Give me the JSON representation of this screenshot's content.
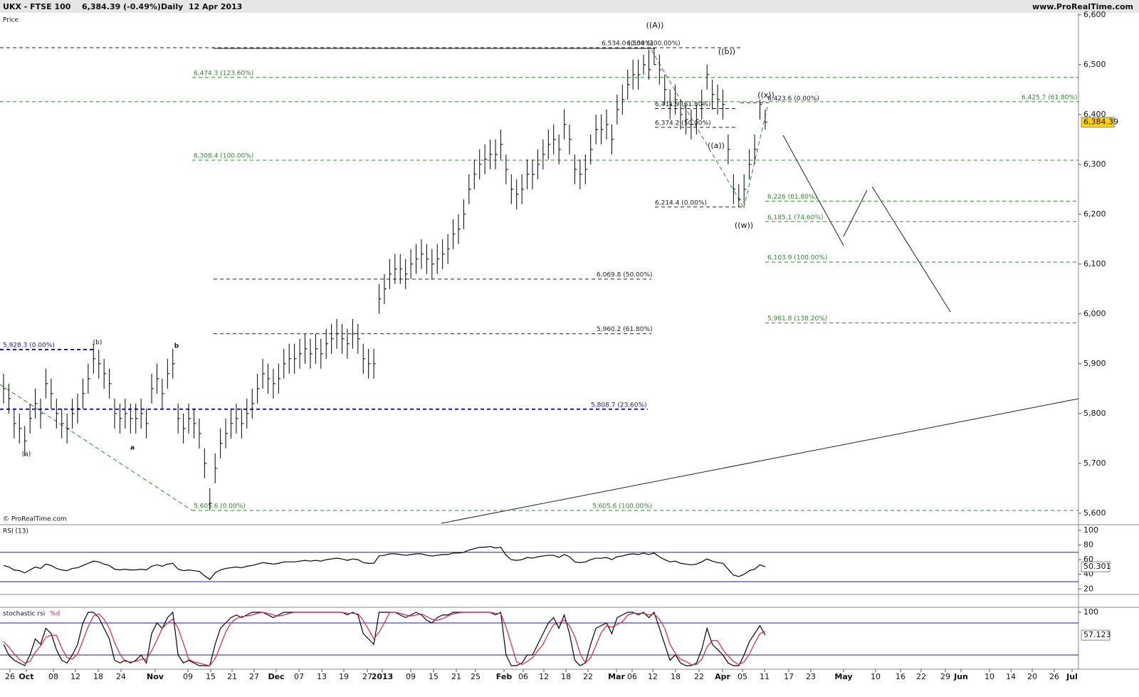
{
  "header": {
    "symbol": "UKX - FTSE 100",
    "quote": "6,384.39 (-0.49%)",
    "period": "Daily  12 Apr 2013",
    "source": "www.ProRealTime.com"
  },
  "chart_data": [
    {
      "type": "ohlc",
      "title": "Price",
      "watermark": "© ProRealTime.com",
      "last_label": "6,384.39",
      "color": "#000000",
      "ylim": [
        5577,
        6604
      ],
      "yticks": [
        {
          "value": 6600,
          "label": "6,600"
        },
        {
          "value": 6500,
          "label": "6,500"
        },
        {
          "value": 6400,
          "label": "6,400"
        },
        {
          "value": 6300,
          "label": "6,300"
        },
        {
          "value": 6200,
          "label": "6,200"
        },
        {
          "value": 6100,
          "label": "6,100"
        },
        {
          "value": 6000,
          "label": "6,000"
        },
        {
          "value": 5900,
          "label": "5,900"
        },
        {
          "value": 5800,
          "label": "5,800"
        },
        {
          "value": 5700,
          "label": "5,700"
        },
        {
          "value": 5600,
          "label": "5,600"
        }
      ],
      "date_labels": [
        "26",
        "Oct",
        "08",
        "12",
        "18",
        "24",
        "Nov",
        "09",
        "15",
        "21",
        "27",
        "Dec",
        "07",
        "13",
        "19",
        "27",
        "2013",
        "09",
        "15",
        "21",
        "25",
        "Feb",
        "06",
        "12",
        "18",
        "22",
        "Mar",
        "06",
        "12",
        "18",
        "22",
        "Apr",
        "05",
        "11",
        "17",
        "23",
        "May",
        "10",
        "16",
        "22",
        "29",
        "Jun",
        "10",
        "14",
        "20",
        "26",
        "Jul"
      ],
      "high": [
        5880,
        5860,
        5810,
        5800,
        5775,
        5820,
        5850,
        5830,
        5890,
        5870,
        5830,
        5810,
        5800,
        5830,
        5840,
        5870,
        5900,
        5940,
        5928.3,
        5910,
        5890,
        5830,
        5820,
        5830,
        5820,
        5820,
        5830,
        5810,
        5880,
        5900,
        5870,
        5910,
        5930,
        5820,
        5800,
        5820,
        5810,
        5790,
        5730,
        5650,
        5720,
        5770,
        5790,
        5810,
        5820,
        5810,
        5830,
        5850,
        5880,
        5910,
        5900,
        5890,
        5900,
        5930,
        5940,
        5940,
        5950,
        5960,
        5950,
        5960,
        5950,
        5970,
        5980,
        5990,
        5980,
        5970,
        5990,
        5980,
        5940,
        5930,
        5930,
        6060,
        6080,
        6110,
        6120,
        6120,
        6110,
        6130,
        6140,
        6150,
        6140,
        6130,
        6140,
        6150,
        6160,
        6190,
        6200,
        6230,
        6280,
        6310,
        6330,
        6340,
        6350,
        6350,
        6370,
        6320,
        6280,
        6270,
        6280,
        6310,
        6310,
        6330,
        6350,
        6370,
        6380,
        6360,
        6410,
        6380,
        6320,
        6310,
        6320,
        6360,
        6400,
        6400,
        6410,
        6380,
        6440,
        6460,
        6490,
        6510,
        6510,
        6520,
        6530,
        6534,
        6520,
        6480,
        6450,
        6460,
        6430,
        6420,
        6410,
        6420,
        6450,
        6500,
        6470,
        6460,
        6450,
        6360,
        6280,
        6260,
        6280,
        6330,
        6360,
        6430,
        6410
      ],
      "low": [
        5820,
        5800,
        5750,
        5740,
        5715,
        5760,
        5790,
        5770,
        5830,
        5810,
        5770,
        5750,
        5740,
        5770,
        5780,
        5810,
        5840,
        5880,
        5870,
        5850,
        5830,
        5770,
        5760,
        5770,
        5760,
        5760,
        5770,
        5750,
        5820,
        5840,
        5810,
        5850,
        5870,
        5760,
        5740,
        5760,
        5750,
        5730,
        5670,
        5605.6,
        5660,
        5710,
        5730,
        5750,
        5760,
        5750,
        5770,
        5790,
        5820,
        5850,
        5840,
        5830,
        5840,
        5870,
        5880,
        5880,
        5890,
        5900,
        5890,
        5900,
        5890,
        5910,
        5920,
        5930,
        5920,
        5910,
        5930,
        5920,
        5880,
        5870,
        5870,
        6000,
        6020,
        6050,
        6060,
        6060,
        6050,
        6070,
        6080,
        6090,
        6080,
        6070,
        6080,
        6090,
        6100,
        6130,
        6140,
        6170,
        6220,
        6250,
        6270,
        6280,
        6290,
        6290,
        6310,
        6260,
        6220,
        6210,
        6220,
        6250,
        6250,
        6270,
        6290,
        6310,
        6320,
        6300,
        6350,
        6320,
        6260,
        6250,
        6260,
        6300,
        6340,
        6340,
        6350,
        6320,
        6380,
        6400,
        6430,
        6450,
        6450,
        6480,
        6470,
        6500,
        6460,
        6420,
        6390,
        6400,
        6370,
        6360,
        6350,
        6360,
        6390,
        6450,
        6410,
        6400,
        6390,
        6300,
        6220,
        6214.4,
        6220,
        6270,
        6300,
        6390,
        6370
      ],
      "close": [
        5850,
        5830,
        5780,
        5770,
        5745,
        5790,
        5820,
        5800,
        5860,
        5840,
        5800,
        5780,
        5770,
        5800,
        5810,
        5840,
        5870,
        5910,
        5900,
        5880,
        5860,
        5800,
        5790,
        5800,
        5790,
        5790,
        5800,
        5780,
        5850,
        5870,
        5840,
        5880,
        5900,
        5790,
        5770,
        5790,
        5780,
        5760,
        5700,
        5620,
        5690,
        5740,
        5760,
        5780,
        5790,
        5780,
        5800,
        5820,
        5850,
        5880,
        5870,
        5860,
        5870,
        5900,
        5910,
        5910,
        5920,
        5930,
        5920,
        5930,
        5920,
        5940,
        5950,
        5960,
        5950,
        5940,
        5960,
        5950,
        5910,
        5900,
        5900,
        6030,
        6050,
        6080,
        6090,
        6090,
        6080,
        6100,
        6110,
        6120,
        6110,
        6100,
        6110,
        6120,
        6130,
        6160,
        6170,
        6200,
        6250,
        6280,
        6300,
        6310,
        6320,
        6320,
        6340,
        6290,
        6250,
        6240,
        6250,
        6280,
        6280,
        6300,
        6320,
        6340,
        6350,
        6330,
        6380,
        6350,
        6290,
        6280,
        6290,
        6330,
        6370,
        6370,
        6380,
        6350,
        6410,
        6430,
        6460,
        6480,
        6480,
        6500,
        6490,
        6500,
        6490,
        6450,
        6420,
        6430,
        6400,
        6390,
        6380,
        6390,
        6420,
        6480,
        6440,
        6430,
        6420,
        6330,
        6250,
        6230,
        6250,
        6300,
        6330,
        6420,
        6384.39
      ],
      "levels": [
        {
          "value": 6534.0,
          "label": "6,534.0 (0.00%)",
          "color": "#222222"
        },
        {
          "value": 6534,
          "label": "6,534 (100.00%)",
          "color": "#222222"
        },
        {
          "value": 6474.3,
          "label": "6,474.3 (123.60%)",
          "color": "#2e8b2e"
        },
        {
          "value": 6425.7,
          "label": "6,425.7 (61.80%)",
          "color": "#2e8b2e"
        },
        {
          "value": 6423.6,
          "label": "6,423.6 (0.00%)",
          "color": "#222222"
        },
        {
          "value": 6411.9,
          "label": "6,411.9 (61.80%)",
          "color": "#222222"
        },
        {
          "value": 6374.2,
          "label": "6,374.2 (50.00%)",
          "color": "#222222"
        },
        {
          "value": 6308.4,
          "label": "6,308.4 (100.00%)",
          "color": "#2e8b2e"
        },
        {
          "value": 6226,
          "label": "6,226 (61.80%)",
          "color": "#2e8b2e"
        },
        {
          "value": 6214.4,
          "label": "6,214.4 (0.00%)",
          "color": "#222222"
        },
        {
          "value": 6185.1,
          "label": "6,185.1 (74.60%)",
          "color": "#2e8b2e"
        },
        {
          "value": 6103.9,
          "label": "6,103.9 (100.00%)",
          "color": "#2e8b2e"
        },
        {
          "value": 6069.8,
          "label": "6,069.8 (50.00%)",
          "color": "#222222"
        },
        {
          "value": 5981.8,
          "label": "5,981.8 (138.20%)",
          "color": "#2e8b2e"
        },
        {
          "value": 5960.2,
          "label": "5,960.2 (61.80%)",
          "color": "#222222"
        },
        {
          "value": 5928.3,
          "label": "5,928.3 (0.00%)",
          "color": "#1a1aa0"
        },
        {
          "value": 5808.7,
          "label": "5,808.7 (23.60%)",
          "color": "#1a1aa0"
        },
        {
          "value": 5605.6,
          "label": "5,605.6 (0.00%)",
          "color": "#2e8b2e"
        },
        {
          "value": 5605.6,
          "label": "5,605.6 (100.00%)",
          "color": "#2e8b2e"
        }
      ],
      "wave_labels": [
        "((A))",
        "((b))",
        "((x))",
        "((a))",
        "((w))",
        "(b)",
        "b",
        "a",
        "(a)"
      ]
    },
    {
      "type": "line",
      "title": "RSI (13)",
      "ylim": [
        13.5,
        106.7
      ],
      "yticks": [
        100,
        80,
        60,
        40,
        20
      ],
      "levels": [
        70,
        30
      ],
      "level_color": "#1a1aa0",
      "series": [
        {
          "color": "#000000",
          "values": [
            52,
            50,
            46,
            45,
            42,
            46,
            50,
            48,
            54,
            52,
            48,
            46,
            45,
            48,
            49,
            52,
            55,
            58,
            57,
            54,
            52,
            47,
            46,
            47,
            46,
            46,
            47,
            46,
            51,
            53,
            51,
            54,
            55,
            47,
            45,
            46,
            45,
            44,
            38,
            33,
            42,
            46,
            48,
            49,
            50,
            49,
            51,
            52,
            54,
            56,
            55,
            54,
            55,
            57,
            57,
            57,
            58,
            59,
            58,
            59,
            58,
            60,
            61,
            62,
            61,
            59,
            61,
            60,
            56,
            55,
            55,
            65,
            66,
            68,
            68,
            67,
            66,
            67,
            68,
            68,
            66,
            65,
            66,
            67,
            67,
            69,
            69,
            70,
            73,
            75,
            77,
            77,
            78,
            76,
            77,
            66,
            60,
            59,
            60,
            63,
            62,
            64,
            65,
            66,
            66,
            63,
            67,
            64,
            57,
            56,
            57,
            60,
            62,
            62,
            63,
            60,
            64,
            65,
            67,
            68,
            67,
            69,
            67,
            69,
            64,
            60,
            57,
            58,
            55,
            54,
            53,
            54,
            57,
            61,
            58,
            56,
            55,
            47,
            39,
            37,
            40,
            45,
            47,
            53,
            50.301
          ]
        }
      ]
    },
    {
      "type": "line",
      "title": "stochastic rsi",
      "ylim": [
        -6.7,
        108
      ],
      "yticks": [
        100
      ],
      "levels": [
        80,
        20
      ],
      "level_color": "#1a1aa0",
      "series": [
        {
          "color": "#000000",
          "values": [
            40,
            20,
            10,
            5,
            0,
            20,
            50,
            40,
            70,
            60,
            30,
            10,
            5,
            20,
            40,
            80,
            100,
            100,
            90,
            70,
            50,
            10,
            5,
            10,
            5,
            10,
            20,
            5,
            60,
            80,
            70,
            90,
            100,
            20,
            5,
            10,
            5,
            0,
            0,
            0,
            40,
            70,
            80,
            90,
            95,
            90,
            95,
            100,
            100,
            100,
            95,
            90,
            95,
            100,
            100,
            100,
            100,
            100,
            100,
            100,
            100,
            100,
            100,
            100,
            100,
            95,
            100,
            95,
            60,
            50,
            40,
            100,
            100,
            100,
            100,
            95,
            90,
            95,
            100,
            95,
            85,
            80,
            90,
            95,
            95,
            100,
            100,
            100,
            100,
            100,
            100,
            100,
            100,
            95,
            100,
            20,
            0,
            0,
            5,
            20,
            20,
            40,
            60,
            80,
            90,
            70,
            95,
            60,
            10,
            0,
            5,
            40,
            70,
            75,
            80,
            60,
            90,
            95,
            100,
            100,
            95,
            100,
            90,
            100,
            70,
            40,
            10,
            20,
            5,
            0,
            0,
            5,
            30,
            70,
            40,
            30,
            20,
            5,
            0,
            0,
            20,
            45,
            60,
            75,
            57.123
          ]
        },
        {
          "name": "%d",
          "color": "#e0204a",
          "values": [
            45,
            35,
            22,
            12,
            5,
            8,
            25,
            37,
            53,
            57,
            57,
            33,
            15,
            12,
            22,
            47,
            73,
            93,
            97,
            87,
            70,
            43,
            22,
            8,
            7,
            8,
            12,
            12,
            28,
            48,
            70,
            80,
            87,
            70,
            42,
            12,
            7,
            5,
            2,
            0,
            13,
            37,
            63,
            80,
            88,
            92,
            93,
            95,
            98,
            100,
            98,
            95,
            93,
            95,
            98,
            100,
            100,
            100,
            100,
            100,
            100,
            100,
            100,
            100,
            100,
            98,
            98,
            97,
            85,
            68,
            50,
            63,
            80,
            100,
            100,
            98,
            95,
            93,
            95,
            97,
            92,
            87,
            85,
            88,
            93,
            97,
            99,
            100,
            100,
            100,
            100,
            100,
            100,
            98,
            98,
            72,
            40,
            7,
            2,
            8,
            15,
            28,
            40,
            60,
            77,
            80,
            85,
            75,
            55,
            23,
            5,
            15,
            38,
            62,
            75,
            72,
            77,
            82,
            95,
            98,
            98,
            98,
            95,
            97,
            87,
            70,
            40,
            23,
            12,
            8,
            2,
            2,
            12,
            35,
            47,
            47,
            30,
            18,
            8,
            2,
            7,
            22,
            42,
            60,
            64
          ]
        }
      ]
    }
  ]
}
